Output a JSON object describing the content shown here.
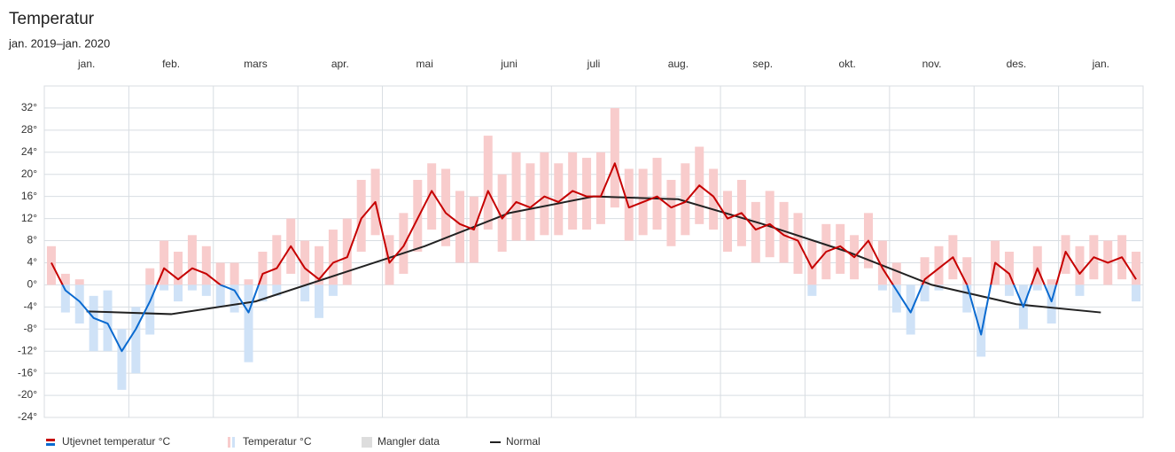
{
  "chart_data": {
    "type": "line",
    "title": "Temperatur",
    "subtitle": "jan. 2019–jan. 2020",
    "categories": [
      "jan.",
      "feb.",
      "mars",
      "apr.",
      "mai",
      "juni",
      "juli",
      "aug.",
      "sep.",
      "okt.",
      "nov.",
      "des.",
      "jan."
    ],
    "ylim": [
      -24,
      36
    ],
    "yticks": [
      {
        "value": -24,
        "label": "-24°"
      },
      {
        "value": -20,
        "label": "-20°"
      },
      {
        "value": -16,
        "label": "-16°"
      },
      {
        "value": -12,
        "label": "-12°"
      },
      {
        "value": -8,
        "label": "-8°"
      },
      {
        "value": -4,
        "label": "-4°"
      },
      {
        "value": 0,
        "label": "0°"
      },
      {
        "value": 4,
        "label": "4°"
      },
      {
        "value": 8,
        "label": "8°"
      },
      {
        "value": 12,
        "label": "12°"
      },
      {
        "value": 16,
        "label": "16°"
      },
      {
        "value": 20,
        "label": "20°"
      },
      {
        "value": 24,
        "label": "24°"
      },
      {
        "value": 28,
        "label": "28°"
      },
      {
        "value": 32,
        "label": "32°"
      }
    ],
    "grid": true,
    "series": [
      {
        "name": "Utjevnet temperatur °C",
        "color": "#c60000",
        "color_below": "#0a6ad0",
        "values": [
          [
            4,
            -1,
            -3,
            -6,
            -7,
            -12
          ],
          [
            -8,
            -3,
            3,
            1,
            3,
            2
          ],
          [
            0,
            -1,
            -5,
            2,
            3,
            7
          ],
          [
            3,
            1,
            4,
            5,
            12,
            15
          ],
          [
            4,
            7,
            12,
            17,
            13,
            11
          ],
          [
            10,
            17,
            12,
            15,
            14,
            16
          ],
          [
            15,
            17,
            16,
            16,
            22,
            14
          ],
          [
            15,
            16,
            14,
            15,
            18,
            16
          ],
          [
            12,
            13,
            10,
            11,
            9,
            8
          ],
          [
            3,
            6,
            7,
            5,
            8,
            3
          ],
          [
            -1,
            -5,
            1,
            3,
            5,
            0
          ],
          [
            -9,
            4,
            2,
            -4,
            3,
            -3
          ],
          [
            6,
            2,
            5,
            4,
            5,
            1
          ]
        ]
      },
      {
        "name": "Temperatur °C",
        "color": "#f8cccc",
        "color_below": "#cfe2f7",
        "low": [
          [
            0,
            -5,
            -7,
            -12,
            -12,
            -19
          ],
          [
            -16,
            -9,
            -1,
            -3,
            -1,
            -2
          ],
          [
            -4,
            -5,
            -14,
            -3,
            -2,
            2
          ],
          [
            -3,
            -6,
            -2,
            0,
            6,
            9
          ],
          [
            0,
            2,
            6,
            10,
            7,
            4
          ],
          [
            4,
            10,
            6,
            8,
            8,
            9
          ],
          [
            9,
            10,
            10,
            11,
            14,
            8
          ],
          [
            9,
            10,
            7,
            9,
            11,
            10
          ],
          [
            6,
            7,
            4,
            5,
            4,
            2
          ],
          [
            -2,
            1,
            2,
            1,
            3,
            -1
          ],
          [
            -5,
            -9,
            -3,
            -1,
            1,
            -5
          ],
          [
            -13,
            0,
            -2,
            -8,
            -1,
            -7
          ],
          [
            2,
            -2,
            1,
            0,
            1,
            -3
          ]
        ],
        "high": [
          [
            7,
            2,
            1,
            -2,
            -1,
            -8
          ],
          [
            -4,
            3,
            8,
            6,
            9,
            7
          ],
          [
            4,
            4,
            1,
            6,
            9,
            12
          ],
          [
            8,
            7,
            10,
            12,
            19,
            21
          ],
          [
            9,
            13,
            19,
            22,
            21,
            17
          ],
          [
            16,
            27,
            20,
            24,
            22,
            24
          ],
          [
            22,
            24,
            23,
            24,
            32,
            21
          ],
          [
            21,
            23,
            19,
            22,
            25,
            21
          ],
          [
            17,
            19,
            15,
            17,
            15,
            13
          ],
          [
            8,
            11,
            11,
            9,
            13,
            8
          ],
          [
            4,
            0,
            5,
            7,
            9,
            5
          ],
          [
            -4,
            8,
            6,
            0,
            7,
            1
          ],
          [
            9,
            7,
            9,
            8,
            9,
            6
          ]
        ]
      },
      {
        "name": "Mangler data",
        "color": "#dddddd"
      },
      {
        "name": "Normal",
        "color": "#222222",
        "values": [
          -4.8,
          -5.3,
          -3,
          2,
          7,
          13,
          16,
          15.5,
          11,
          6,
          0,
          -3.5,
          -5
        ]
      }
    ]
  }
}
